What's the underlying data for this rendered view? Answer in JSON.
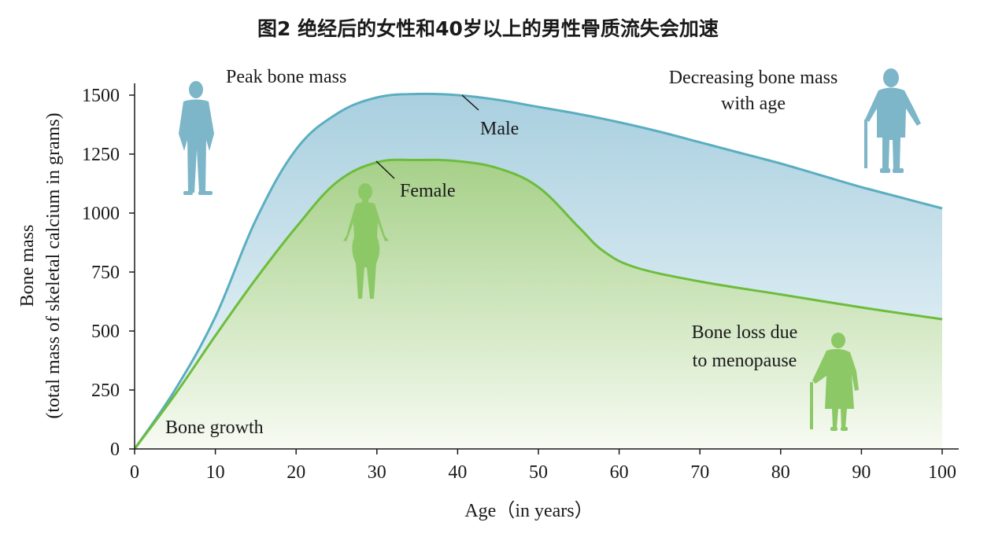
{
  "chart_data": {
    "type": "area",
    "title": "图2 绝经后的女性和40岁以上的男性骨质流失会加速",
    "xlabel": "Age（in years）",
    "ylabel_line1": "Bone mass",
    "ylabel_line2": "(total mass of skeletal calcium in grams)",
    "xlim": [
      0,
      100
    ],
    "ylim": [
      0,
      1500
    ],
    "x_ticks": [
      "0",
      "10",
      "20",
      "30",
      "40",
      "50",
      "60",
      "70",
      "80",
      "90",
      "100"
    ],
    "y_ticks": [
      "0",
      "250",
      "500",
      "750",
      "1000",
      "1250",
      "1500"
    ],
    "colors": {
      "male": "#5aaec0",
      "female": "#6dbd3c",
      "male_fill_top": "#a9cfdf",
      "female_fill_top": "#a6d088",
      "figure_male": "#7db6c8",
      "figure_female": "#8cc866"
    },
    "series": [
      {
        "name": "Male",
        "x": [
          0,
          5,
          10,
          15,
          20,
          25,
          30,
          35,
          40,
          45,
          50,
          55,
          60,
          65,
          70,
          75,
          80,
          85,
          90,
          95,
          100
        ],
        "y": [
          0,
          250,
          560,
          970,
          1270,
          1420,
          1490,
          1505,
          1500,
          1480,
          1450,
          1420,
          1385,
          1345,
          1300,
          1255,
          1210,
          1160,
          1110,
          1065,
          1020
        ]
      },
      {
        "name": "Female",
        "x": [
          0,
          5,
          10,
          15,
          20,
          25,
          30,
          35,
          40,
          45,
          50,
          55,
          58,
          62,
          70,
          80,
          90,
          100
        ],
        "y": [
          0,
          230,
          480,
          720,
          940,
          1130,
          1215,
          1225,
          1220,
          1190,
          1110,
          940,
          840,
          770,
          710,
          655,
          600,
          550
        ]
      }
    ],
    "annotations": {
      "peak": "Peak bone mass",
      "decreasing_line1": "Decreasing bone mass",
      "decreasing_line2": "with age",
      "male": "Male",
      "female": "Female",
      "menopause_line1": "Bone loss due",
      "menopause_line2": "to menopause",
      "growth": "Bone growth"
    },
    "grid": false,
    "legend": "none"
  },
  "icons": {
    "standing_man": "standing-man-icon",
    "standing_woman": "standing-woman-icon",
    "elderly_man": "elderly-man-with-cane-icon",
    "elderly_woman": "elderly-woman-with-cane-icon"
  }
}
